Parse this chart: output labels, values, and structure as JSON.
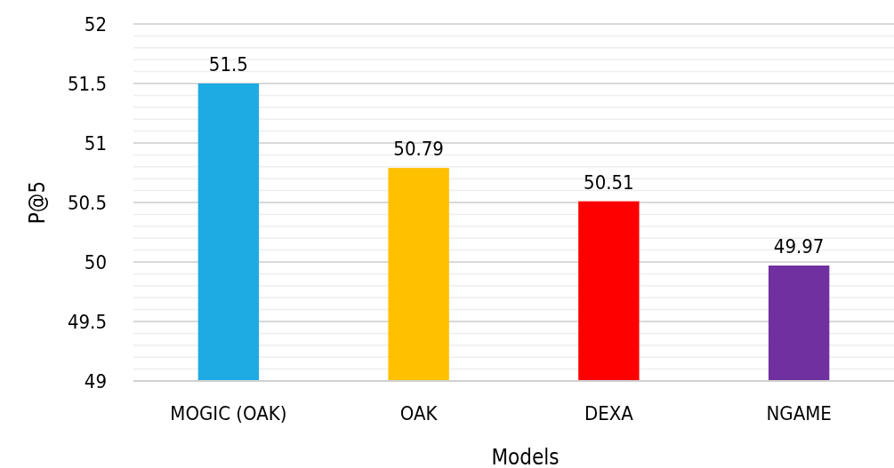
{
  "chart_data": {
    "type": "bar",
    "xlabel": "Models",
    "ylabel": "P@5",
    "categories": [
      "MOGIC (OAK)",
      "OAK",
      "DEXA",
      "NGAME"
    ],
    "values": [
      51.5,
      50.79,
      50.51,
      49.97
    ],
    "colors": [
      "#1eabe3",
      "#ffc000",
      "#ff0000",
      "#7030a0"
    ],
    "ylim": [
      49,
      52
    ],
    "yticks": [
      49,
      {
        "value": 49.1,
        "label": null
      },
      {
        "value": 49.2,
        "label": null
      },
      {
        "value": 49.3,
        "label": null
      },
      {
        "value": 49.4,
        "label": null
      },
      49.5,
      {
        "value": 49.6,
        "label": null
      },
      {
        "value": 49.7,
        "label": null
      },
      {
        "value": 49.8,
        "label": null
      },
      {
        "value": 49.9,
        "label": null
      },
      50,
      {
        "value": 50.1,
        "label": null
      },
      {
        "value": 50.2,
        "label": null
      },
      {
        "value": 50.3,
        "label": null
      },
      {
        "value": 50.4,
        "label": null
      },
      50.5,
      {
        "value": 50.6,
        "label": null
      },
      {
        "value": 50.7,
        "label": null
      },
      {
        "value": 50.8,
        "label": null
      },
      {
        "value": 50.9,
        "label": null
      },
      51,
      {
        "value": 51.1,
        "label": null
      },
      {
        "value": 51.2,
        "label": null
      },
      {
        "value": 51.3,
        "label": null
      },
      {
        "value": 51.4,
        "label": null
      },
      51.5,
      {
        "value": 51.6,
        "label": null
      },
      {
        "value": 51.7,
        "label": null
      },
      {
        "value": 51.8,
        "label": null
      },
      {
        "value": 51.9,
        "label": null
      },
      52
    ],
    "grid": "y",
    "data_labels": true
  }
}
